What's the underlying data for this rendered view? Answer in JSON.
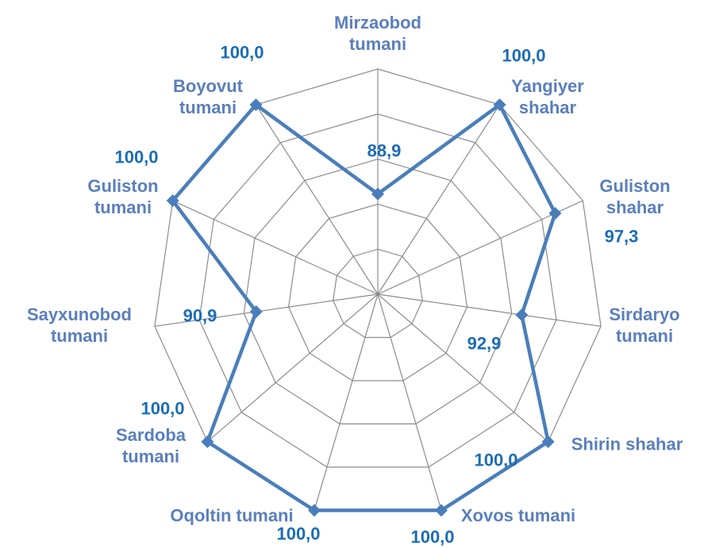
{
  "chart_data": {
    "type": "radar",
    "categories": [
      "Mirzaobod tumani",
      "Yangiyer shahar",
      "Guliston shahar",
      "Sirdaryo tumani",
      "Shirin shahar",
      "Xovos tumani",
      "Oqoltin tumani",
      "Sardoba tumani",
      "Sayxunobod tumani",
      "Guliston tumani",
      "Boyovut tumani"
    ],
    "values": [
      88.9,
      100.0,
      97.3,
      92.9,
      100.0,
      100.0,
      100.0,
      100.0,
      90.9,
      100.0,
      100.0
    ],
    "value_labels": [
      "88,9",
      "100,0",
      "97,3",
      "92,9",
      "100,0",
      "100,0",
      "100,0",
      "100,0",
      "90,9",
      "100,0",
      "100,0"
    ],
    "color": "#4a7ebb",
    "ylim": [
      80,
      100
    ],
    "yticks": [
      80,
      84,
      88,
      92,
      96,
      100
    ],
    "grid": true
  }
}
